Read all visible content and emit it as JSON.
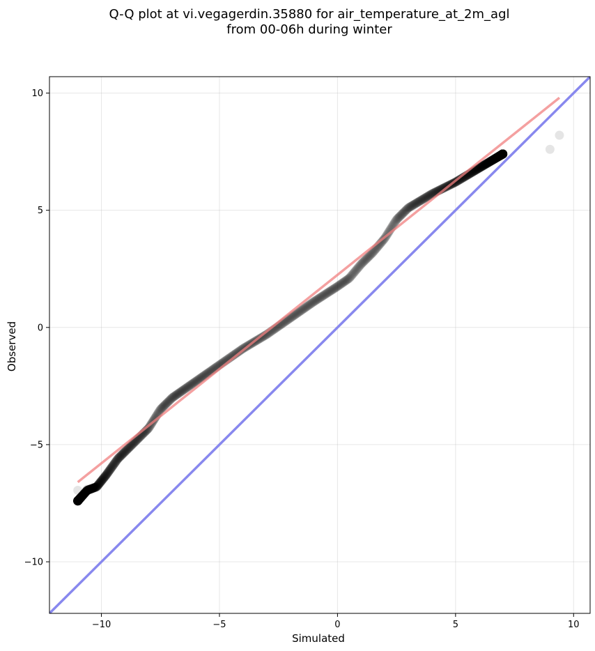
{
  "chart_data": {
    "type": "scatter",
    "title_line1": "Q-Q plot at vi.vegagerdin.35880 for air_temperature_at_2m_agl",
    "title_line2": "from 00-06h during winter",
    "xlabel": "Simulated",
    "ylabel": "Observed",
    "xlim": [
      -12.2,
      10.7
    ],
    "ylim": [
      -12.2,
      10.7
    ],
    "xticks": [
      -10,
      -5,
      0,
      5,
      10
    ],
    "yticks": [
      -10,
      -5,
      0,
      5,
      10
    ],
    "xtick_labels": [
      "−10",
      "−5",
      "0",
      "5",
      "10"
    ],
    "ytick_labels": [
      "−10",
      "−5",
      "0",
      "5",
      "10"
    ],
    "grid": true,
    "point_color": "#000000",
    "point_alpha": 0.1,
    "fit_line": {
      "color": "#f08080",
      "x": [
        -11.0,
        9.4
      ],
      "y": [
        -6.6,
        9.8
      ]
    },
    "identity_line": {
      "color": "#8888ee",
      "x": [
        -12.2,
        10.7
      ],
      "y": [
        -12.2,
        10.7
      ]
    },
    "curve_knots": [
      [
        -11.0,
        -7.4
      ],
      [
        -10.6,
        -6.95
      ],
      [
        -10.2,
        -6.8
      ],
      [
        -9.8,
        -6.3
      ],
      [
        -9.3,
        -5.6
      ],
      [
        -8.7,
        -5.0
      ],
      [
        -8.0,
        -4.3
      ],
      [
        -7.5,
        -3.5
      ],
      [
        -7.0,
        -3.0
      ],
      [
        -6.0,
        -2.3
      ],
      [
        -5.0,
        -1.6
      ],
      [
        -4.0,
        -0.9
      ],
      [
        -3.0,
        -0.3
      ],
      [
        -2.0,
        0.4
      ],
      [
        -1.0,
        1.1
      ],
      [
        0.0,
        1.75
      ],
      [
        0.5,
        2.1
      ],
      [
        1.0,
        2.7
      ],
      [
        1.5,
        3.2
      ],
      [
        2.0,
        3.8
      ],
      [
        2.5,
        4.6
      ],
      [
        3.0,
        5.1
      ],
      [
        4.0,
        5.7
      ],
      [
        5.0,
        6.2
      ],
      [
        6.0,
        6.8
      ],
      [
        7.0,
        7.4
      ]
    ],
    "extra_points": [
      [
        9.0,
        7.6
      ],
      [
        9.4,
        8.2
      ],
      [
        -11.0,
        -6.95
      ],
      [
        -10.6,
        -6.9
      ]
    ]
  }
}
